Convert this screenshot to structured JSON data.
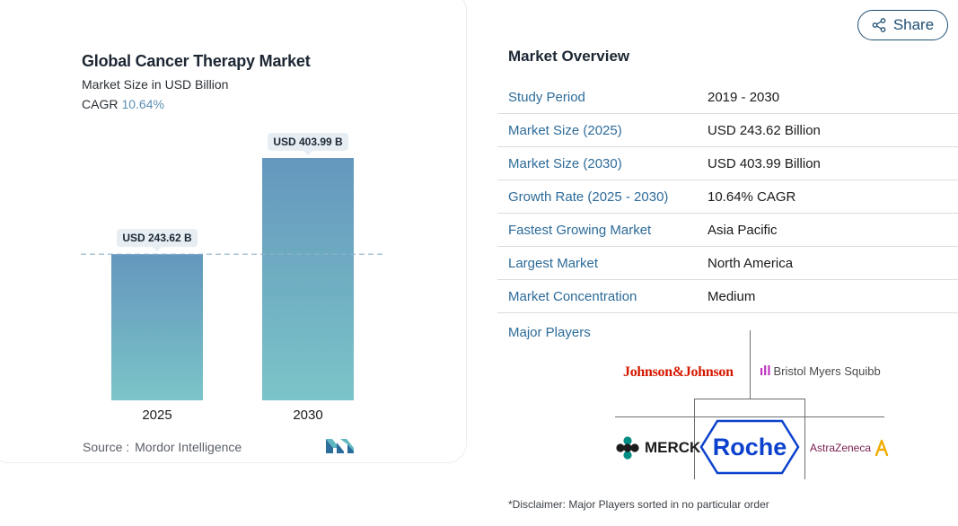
{
  "chart_card": {
    "title": "Global Cancer Therapy Market",
    "subtitle": "Market Size in USD Billion",
    "cagr_label": "CAGR",
    "cagr_value": "10.64%",
    "source_label": "Source :",
    "source_name": "Mordor Intelligence"
  },
  "chart_data": {
    "type": "bar",
    "categories": [
      "2025",
      "2030"
    ],
    "values": [
      243.62,
      403.99
    ],
    "data_labels": [
      "USD 243.62 B",
      "USD 403.99 B"
    ],
    "title": "Global Cancer Therapy Market",
    "subtitle": "Market Size in USD Billion",
    "reference_line": 243.62,
    "grid": false,
    "legend": "none",
    "colors": {
      "bar_top": "#6497bd",
      "bar_bottom": "#7bc4c8",
      "label_bg": "#e6eef3",
      "ref_line": "#8fb4cc"
    }
  },
  "share": {
    "label": "Share"
  },
  "overview": {
    "title": "Market Overview",
    "rows": [
      {
        "label": "Study Period",
        "value": "2019 - 2030"
      },
      {
        "label": "Market Size (2025)",
        "value": "USD 243.62 Billion"
      },
      {
        "label": "Market Size (2030)",
        "value": "USD 403.99 Billion"
      },
      {
        "label": "Growth Rate (2025 - 2030)",
        "value": "10.64% CAGR"
      },
      {
        "label": "Fastest Growing Market",
        "value": "Asia Pacific"
      },
      {
        "label": "Largest Market",
        "value": "North America"
      },
      {
        "label": "Market Concentration",
        "value": "Medium"
      }
    ]
  },
  "major_players": {
    "title": "Major Players",
    "players": [
      {
        "name": "Johnson&Johnson"
      },
      {
        "name": "Bristol Myers Squibb"
      },
      {
        "name": "MERCK"
      },
      {
        "name": "Roche"
      },
      {
        "name": "AstraZeneca"
      }
    ]
  },
  "disclaimer": "*Disclaimer: Major Players sorted in no particular order",
  "colors": {
    "accent": "#2d6b99",
    "share_border": "#1e4f73"
  }
}
